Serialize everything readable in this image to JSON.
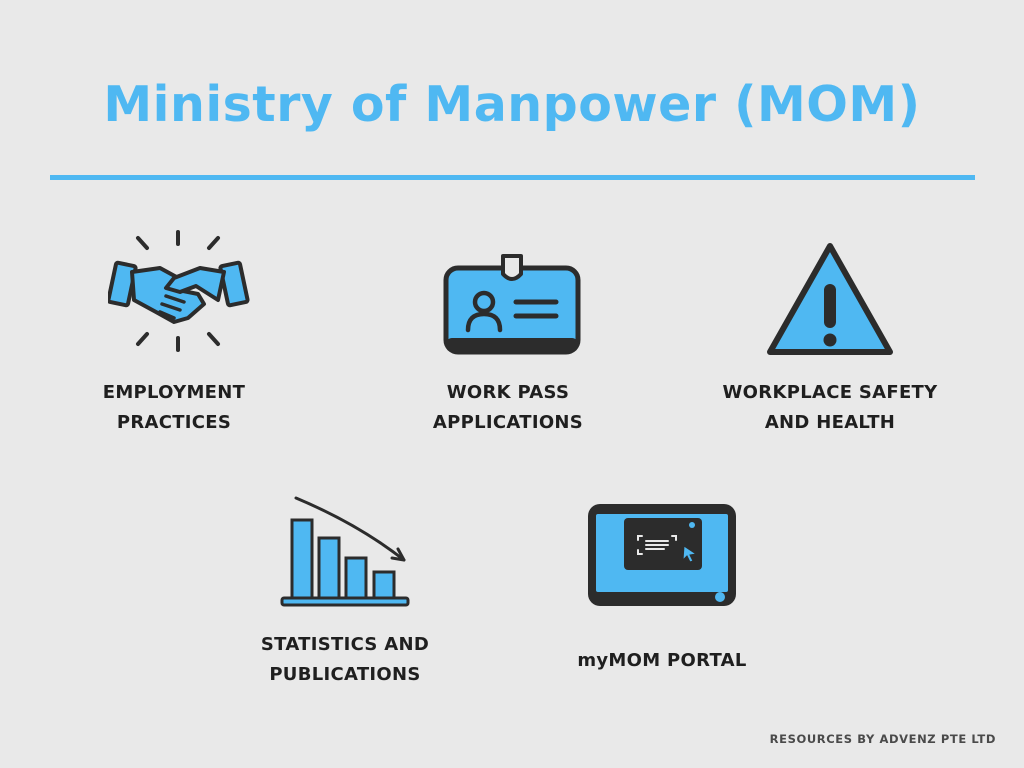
{
  "title": "Ministry of Manpower (MOM)",
  "accent_color": "#4fb8f2",
  "icon_fill_color": "#4fb8f2",
  "icon_stroke_color": "#2c2c2c",
  "items": [
    {
      "icon": "handshake-icon",
      "line1": "EMPLOYMENT",
      "line2": "PRACTICES"
    },
    {
      "icon": "id-badge-icon",
      "line1": "WORK PASS",
      "line2": "APPLICATIONS"
    },
    {
      "icon": "warning-triangle-icon",
      "line1": "WORKPLACE SAFETY",
      "line2": "AND HEALTH"
    },
    {
      "icon": "declining-bar-chart-icon",
      "line1": "STATISTICS AND",
      "line2": "PUBLICATIONS"
    },
    {
      "icon": "portal-screen-icon",
      "line1": "myMOM PORTAL",
      "line2": ""
    }
  ],
  "footer": "RESOURCES BY ADVENZ PTE LTD"
}
